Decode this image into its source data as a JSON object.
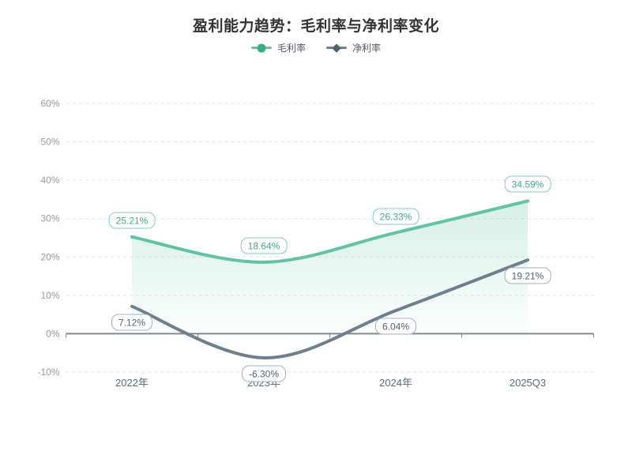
{
  "page": {
    "background": "#ffffff"
  },
  "colors": {
    "grid": "#e4e4e4",
    "axis": "#7f8a91",
    "ytick_text": "#999999",
    "xtick_text": "#5a6b76",
    "title_text": "#333333",
    "legend_text": "#555a64"
  },
  "chart_data": {
    "type": "line",
    "title": "盈利能力趋势：毛利率与净利率变化",
    "categories": [
      "2022年",
      "2023年",
      "2024年",
      "2025Q3"
    ],
    "series": [
      {
        "id": "gross-margin",
        "name": "毛利率",
        "symbol": "circle",
        "color": "#5ec4a2",
        "marker_color": "#2fb57c",
        "label_text_color": "#3fae87",
        "label_border_color": "#7ed0b2",
        "area_fill": true,
        "label_position": "above",
        "values": [
          25.21,
          18.64,
          26.33,
          34.59
        ],
        "labels": [
          "25.21%",
          "18.64%",
          "26.33%",
          "34.59%"
        ]
      },
      {
        "id": "net-margin",
        "name": "净利率",
        "symbol": "diamond",
        "color": "#6e8090",
        "marker_color": "#4e6170",
        "label_text_color": "#54656f",
        "label_border_color": "#a6b0b8",
        "area_fill": false,
        "label_position": "below",
        "values": [
          7.12,
          -6.3,
          6.04,
          19.21
        ],
        "labels": [
          "7.12%",
          "-6.30%",
          "6.04%",
          "19.21%"
        ]
      }
    ],
    "ylim": [
      -10,
      60
    ],
    "ytick_step": 10,
    "yticks": [
      "60%",
      "50%",
      "40%",
      "30%",
      "20%",
      "10%",
      "0%",
      "-10%"
    ],
    "grid": "horizontal-dashed",
    "legend_position": "top",
    "smooth": true
  }
}
